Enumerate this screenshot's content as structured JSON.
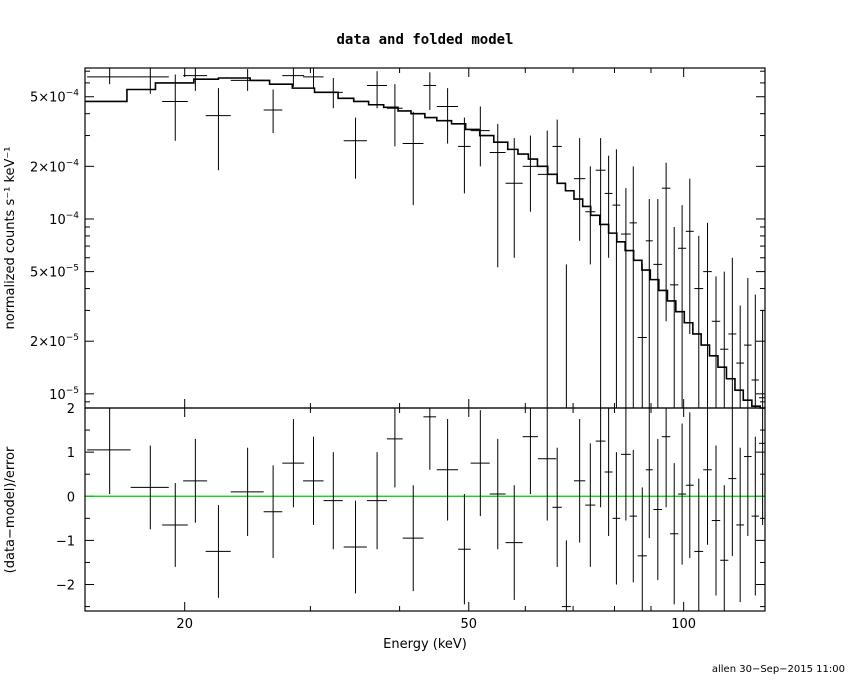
{
  "chart_data": [
    {
      "type": "scatter",
      "title": "data and folded model",
      "xlabel": "",
      "ylabel": "normalized counts s⁻¹ keV⁻¹",
      "xscale": "log",
      "yscale": "log",
      "xlim": [
        14.5,
        130
      ],
      "ylim": [
        8.3e-06,
        0.00073
      ],
      "yticks": [
        {
          "value": 0.0005,
          "mant": "5×10",
          "exp": "−4"
        },
        {
          "value": 0.0002,
          "mant": "2×10",
          "exp": "−4"
        },
        {
          "value": 0.0001,
          "mant": "10",
          "exp": "−4"
        },
        {
          "value": 5e-05,
          "mant": "5×10",
          "exp": "−5"
        },
        {
          "value": 2e-05,
          "mant": "2×10",
          "exp": "−5"
        },
        {
          "value": 1e-05,
          "mant": "10",
          "exp": "−5"
        }
      ],
      "series": [
        {
          "style": "crosses with error bars",
          "x": [
            15.7,
            17.9,
            19.4,
            20.7,
            22.3,
            24.5,
            26.6,
            28.4,
            30.3,
            32.3,
            34.7,
            37.2,
            39.4,
            41.8,
            44.1,
            46.7,
            49.3,
            51.9,
            54.9,
            57.9,
            61.0,
            64.4,
            66.5,
            68.5,
            71.5,
            74.0,
            76.5,
            78.5,
            80.5,
            83.0,
            85.0,
            87.5,
            89.5,
            92.0,
            94.5,
            97.0,
            99.5,
            102.0,
            105.0,
            108.0,
            111.0,
            114.0,
            117.0,
            120.0,
            123.0,
            126.0,
            129.0
          ],
          "xerr": [
            1.1,
            1.1,
            0.8,
            0.8,
            0.9,
            1.3,
            0.8,
            1.0,
            1.0,
            1.0,
            1.3,
            1.2,
            1.0,
            1.4,
            0.9,
            1.6,
            1.0,
            1.6,
            1.4,
            1.6,
            1.5,
            1.9,
            1.0,
            1.0,
            1.3,
            1.2,
            1.2,
            1.0,
            1.0,
            1.3,
            1.0,
            1.3,
            1.0,
            1.3,
            1.3,
            1.3,
            1.3,
            1.3,
            1.5,
            1.5,
            1.5,
            1.5,
            1.5,
            1.5,
            1.5,
            1.5,
            1.5
          ],
          "y": [
            0.00065,
            0.00065,
            0.00047,
            0.00066,
            0.00039,
            0.00062,
            0.00042,
            0.00066,
            0.00065,
            0.00053,
            0.00028,
            0.00058,
            0.00043,
            0.00027,
            0.00058,
            0.00044,
            0.00026,
            0.00032,
            0.00024,
            0.00016,
            0.0002,
            0.00018,
            0.00026,
            8.3e-06,
            0.00017,
            0.00011,
            0.00019,
            0.00014,
            0.00012,
            8.2e-05,
            9.5e-05,
            2.1e-05,
            7.5e-05,
            5.5e-05,
            0.00015,
            4.2e-05,
            6.8e-05,
            8.5e-05,
            4e-05,
            5e-05,
            2.6e-05,
            1.8e-05,
            2.2e-05,
            1.5e-05,
            1.9e-05,
            1.2e-05,
            9.5e-06
          ],
          "ylo": [
            0.00059,
            0.00052,
            0.00028,
            0.00054,
            0.00019,
            0.00054,
            0.00031,
            0.00057,
            0.00056,
            0.00043,
            0.00017,
            0.00043,
            0.00026,
            0.00012,
            0.00042,
            0.00027,
            0.00014,
            0.0002,
            5.3e-05,
            6e-05,
            0.00011,
            8.3e-06,
            0.00016,
            8.3e-06,
            7.5e-05,
            5.5e-05,
            8.3e-06,
            6e-05,
            8.3e-06,
            8.3e-06,
            8.3e-06,
            8.3e-06,
            8.3e-06,
            8.3e-06,
            2.6e-05,
            8.3e-06,
            8.3e-06,
            2.2e-05,
            8.3e-06,
            8.3e-06,
            8.3e-06,
            8.3e-06,
            8.3e-06,
            8.3e-06,
            8.3e-06,
            8.3e-06,
            8.3e-06
          ],
          "yhi": [
            0.00073,
            0.00073,
            0.00067,
            0.00073,
            0.00056,
            0.00072,
            0.00055,
            0.00073,
            0.00073,
            0.00064,
            0.00038,
            0.0007,
            0.00059,
            0.00041,
            0.00069,
            0.00056,
            0.00038,
            0.00044,
            0.00035,
            0.00029,
            0.0003,
            0.00032,
            0.00037,
            5.5e-05,
            0.00029,
            0.0002,
            0.00029,
            0.00023,
            0.00025,
            0.00015,
            0.0002,
            5.5e-05,
            0.00013,
            0.00013,
            0.00021,
            9e-05,
            0.00012,
            0.00017,
            8e-05,
            9.5e-05,
            4.7e-05,
            5e-05,
            6e-05,
            3.2e-05,
            4.6e-05,
            3.7e-05,
            3e-05
          ]
        },
        {
          "style": "histogram step (folded model)",
          "x": [
            14.5,
            16.6,
            18.2,
            20.6,
            22.3,
            24.7,
            26.3,
            28.3,
            30.4,
            32.8,
            34.5,
            36.2,
            38.0,
            39.8,
            41.5,
            43.4,
            45.1,
            47.3,
            49.5,
            51.8,
            54.2,
            56.7,
            58.6,
            60.6,
            62.4,
            64.5,
            66.5,
            68.3,
            70.2,
            72.2,
            74.1,
            76.3,
            78.5,
            80.6,
            82.8,
            85.1,
            87.4,
            89.8,
            92.3,
            94.9,
            97.5,
            100.2,
            103.0,
            105.8,
            108.7,
            111.7,
            114.8,
            118.0,
            121.2,
            124.6,
            128.0
          ],
          "y": [
            0.00047,
            0.00055,
            0.0006,
            0.00063,
            0.00064,
            0.00062,
            0.00059,
            0.00056,
            0.00053,
            0.00049,
            0.00047,
            0.00045,
            0.000435,
            0.000415,
            0.0004,
            0.00038,
            0.000365,
            0.00035,
            0.000325,
            0.0003,
            0.000275,
            0.00025,
            0.000235,
            0.00022,
            0.0002,
            0.00018,
            0.00016,
            0.000145,
            0.00013,
            0.000118,
            0.000105,
            9.3e-05,
            8.3e-05,
            7.4e-05,
            6.6e-05,
            5.8e-05,
            5.1e-05,
            4.5e-05,
            3.9e-05,
            3.4e-05,
            2.95e-05,
            2.55e-05,
            2.2e-05,
            1.9e-05,
            1.65e-05,
            1.42e-05,
            1.22e-05,
            1.05e-05,
            9.2e-06,
            8.5e-06,
            8.3e-06
          ]
        }
      ]
    },
    {
      "type": "scatter",
      "xlabel": "Energy (keV)",
      "ylabel": "(data−model)/error",
      "xscale": "log",
      "xlim": [
        14.5,
        130
      ],
      "ylim": [
        -2.6,
        2.0
      ],
      "xticks": [
        20,
        50,
        100
      ],
      "yticks": [
        2,
        1,
        0,
        -1,
        -2
      ],
      "zero_line_color": "#00cc00",
      "series": [
        {
          "style": "crosses with error bars",
          "x": [
            15.7,
            17.9,
            19.4,
            20.7,
            22.3,
            24.5,
            26.6,
            28.4,
            30.3,
            32.3,
            34.7,
            37.2,
            39.4,
            41.8,
            44.1,
            46.7,
            49.3,
            51.9,
            54.9,
            57.9,
            61.0,
            64.4,
            66.5,
            68.5,
            71.5,
            74.0,
            76.5,
            78.5,
            80.5,
            83.0,
            85.0,
            87.5,
            89.5,
            92.0,
            94.5,
            97.0,
            99.5,
            102.0,
            105.0,
            108.0,
            111.0,
            114.0,
            117.0,
            120.0,
            123.0,
            126.0,
            129.0
          ],
          "xerr": [
            1.1,
            1.1,
            0.8,
            0.8,
            0.9,
            1.3,
            0.8,
            1.0,
            1.0,
            1.0,
            1.3,
            1.2,
            1.0,
            1.4,
            0.9,
            1.6,
            1.0,
            1.6,
            1.4,
            1.6,
            1.5,
            1.9,
            1.0,
            1.0,
            1.3,
            1.2,
            1.2,
            1.0,
            1.0,
            1.3,
            1.0,
            1.3,
            1.0,
            1.3,
            1.3,
            1.3,
            1.3,
            1.3,
            1.5,
            1.5,
            1.5,
            1.5,
            1.5,
            1.5,
            1.5,
            1.5,
            1.5
          ],
          "y": [
            1.05,
            0.2,
            -0.65,
            0.35,
            -1.25,
            0.1,
            -0.35,
            0.75,
            0.35,
            -0.1,
            -1.15,
            -0.1,
            1.3,
            -0.95,
            1.8,
            0.6,
            -1.2,
            0.75,
            0.05,
            -1.05,
            1.35,
            0.85,
            -0.25,
            -2.5,
            0.35,
            -0.2,
            1.25,
            0.55,
            -0.5,
            0.95,
            -0.45,
            -1.35,
            0.6,
            -0.3,
            1.35,
            -0.85,
            0.05,
            0.25,
            -1.25,
            0.6,
            -0.55,
            -1.45,
            0.4,
            -0.65,
            0.9,
            -0.45,
            1.2
          ],
          "yerr": [
            1.0,
            0.95,
            0.95,
            0.95,
            1.05,
            1.0,
            1.05,
            1.0,
            1.0,
            1.1,
            1.05,
            1.1,
            1.1,
            1.2,
            1.2,
            1.15,
            1.25,
            1.2,
            1.25,
            1.3,
            1.3,
            1.4,
            1.35,
            1.5,
            1.4,
            1.4,
            1.5,
            1.45,
            1.5,
            1.5,
            1.5,
            1.55,
            1.55,
            1.6,
            1.6,
            1.6,
            1.6,
            1.65,
            1.65,
            1.7,
            1.7,
            1.7,
            1.75,
            1.75,
            1.8,
            1.8,
            1.85
          ]
        }
      ]
    }
  ],
  "footer": "allen 30−Sep−2015 11:00"
}
